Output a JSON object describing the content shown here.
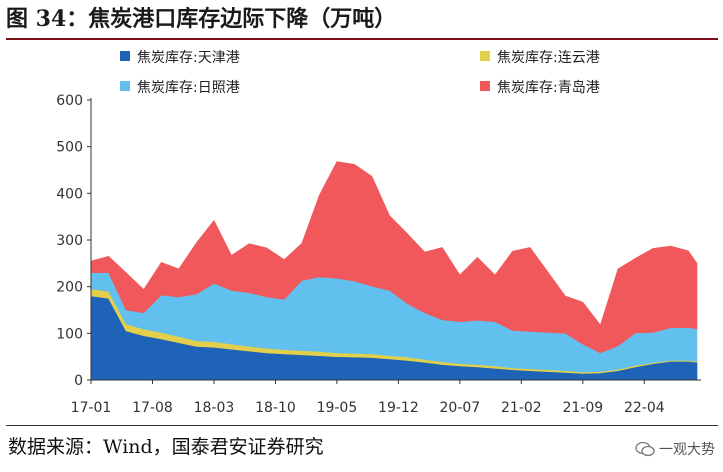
{
  "figure": {
    "title": "图 34：焦炭港口库存边际下降（万吨）",
    "source": "数据来源：Wind，国泰君安证券研究",
    "watermark": "一观大势"
  },
  "chart_data": {
    "type": "area",
    "stacked": true,
    "title": "",
    "xlabel": "",
    "ylabel": "",
    "ylim": [
      0,
      600
    ],
    "yticks": [
      0,
      100,
      200,
      300,
      400,
      500,
      600
    ],
    "xticks": [
      "17-01",
      "17-08",
      "18-03",
      "18-10",
      "19-05",
      "19-12",
      "20-07",
      "21-02",
      "21-09",
      "22-04"
    ],
    "grid": false,
    "legend_position": "top",
    "x_start": "2017-01",
    "x_end": "2022-10",
    "x": [
      "2017-01",
      "2017-03",
      "2017-05",
      "2017-07",
      "2017-09",
      "2017-11",
      "2018-01",
      "2018-03",
      "2018-05",
      "2018-07",
      "2018-09",
      "2018-11",
      "2019-01",
      "2019-03",
      "2019-05",
      "2019-07",
      "2019-09",
      "2019-11",
      "2020-01",
      "2020-03",
      "2020-05",
      "2020-07",
      "2020-09",
      "2020-11",
      "2021-01",
      "2021-03",
      "2021-05",
      "2021-07",
      "2021-09",
      "2021-11",
      "2022-01",
      "2022-03",
      "2022-05",
      "2022-07",
      "2022-09",
      "2022-10"
    ],
    "series": [
      {
        "name": "焦炭库存:天津港",
        "color": "#1f63b8",
        "values": [
          180,
          175,
          105,
          95,
          88,
          80,
          72,
          70,
          66,
          62,
          58,
          56,
          54,
          52,
          50,
          49,
          48,
          45,
          42,
          38,
          33,
          30,
          28,
          25,
          22,
          20,
          18,
          16,
          14,
          15,
          20,
          28,
          35,
          40,
          40,
          38
        ]
      },
      {
        "name": "焦炭库存:连云港",
        "color": "#e3d04a",
        "values": [
          15,
          15,
          15,
          14,
          14,
          13,
          12,
          12,
          11,
          10,
          10,
          9,
          9,
          9,
          8,
          8,
          8,
          7,
          7,
          6,
          6,
          5,
          5,
          5,
          4,
          4,
          4,
          4,
          3,
          3,
          3,
          3,
          2,
          2,
          2,
          2
        ]
      },
      {
        "name": "焦炭库存:日照港",
        "color": "#62c0ee",
        "values": [
          35,
          40,
          30,
          35,
          80,
          85,
          100,
          125,
          115,
          115,
          110,
          108,
          150,
          160,
          160,
          155,
          145,
          140,
          115,
          100,
          90,
          90,
          95,
          95,
          80,
          80,
          80,
          80,
          60,
          40,
          50,
          70,
          65,
          70,
          70,
          70
        ]
      },
      {
        "name": "焦炭库存:青岛港",
        "color": "#f0585c",
        "values": [
          25,
          35,
          80,
          50,
          70,
          60,
          110,
          135,
          75,
          105,
          105,
          85,
          80,
          175,
          250,
          250,
          235,
          160,
          150,
          130,
          155,
          100,
          135,
          100,
          170,
          180,
          130,
          80,
          90,
          60,
          165,
          160,
          180,
          175,
          165,
          140
        ]
      }
    ]
  }
}
